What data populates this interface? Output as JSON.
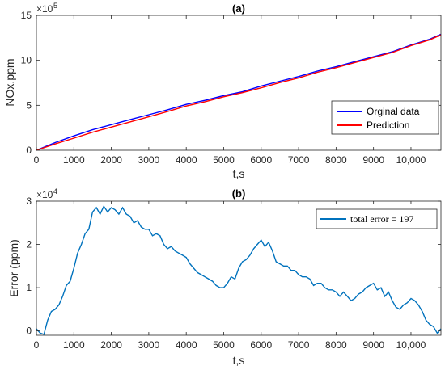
{
  "chart_data": [
    {
      "type": "line",
      "title": "(a)",
      "xlabel": "t,s",
      "ylabel": "NOx,ppm",
      "xlim": [
        0,
        10800
      ],
      "ylim": [
        0,
        1500000
      ],
      "x_ticks": [
        0,
        1000,
        2000,
        3000,
        4000,
        5000,
        6000,
        7000,
        8000,
        9000,
        10000
      ],
      "x_tick_labels": [
        "0",
        "1000",
        "2000",
        "3000",
        "4000",
        "5000",
        "6000",
        "7000",
        "8000",
        "9000",
        "10,000"
      ],
      "y_ticks": [
        0,
        500000,
        1000000,
        1500000
      ],
      "y_tick_labels": [
        "0",
        "5",
        "10",
        "15"
      ],
      "y_exponent_base": "×10",
      "y_exponent_power": "5",
      "legend_position": "bottom-right",
      "series": [
        {
          "name": "Orginal data",
          "color": "#0000ff",
          "x": [
            0,
            500,
            1000,
            1500,
            2000,
            2500,
            3000,
            3500,
            4000,
            4500,
            5000,
            5500,
            6000,
            6500,
            7000,
            7500,
            8000,
            8500,
            9000,
            9500,
            10000,
            10500,
            10800
          ],
          "y": [
            0,
            85000,
            160000,
            228000,
            285000,
            340000,
            395000,
            450000,
            510000,
            555000,
            608000,
            650000,
            715000,
            768000,
            820000,
            880000,
            930000,
            985000,
            1040000,
            1095000,
            1170000,
            1235000,
            1290000
          ]
        },
        {
          "name": "Prediction",
          "color": "#ff0000",
          "x": [
            0,
            500,
            1000,
            1500,
            2000,
            2500,
            3000,
            3500,
            4000,
            4500,
            5000,
            5500,
            6000,
            6500,
            7000,
            7500,
            8000,
            8500,
            9000,
            9500,
            10000,
            10500,
            10800
          ],
          "y": [
            0,
            70000,
            135000,
            200000,
            258000,
            315000,
            372000,
            430000,
            492000,
            540000,
            595000,
            640000,
            694000,
            753000,
            805000,
            867000,
            918000,
            975000,
            1031000,
            1087000,
            1163000,
            1228000,
            1283000
          ]
        }
      ]
    },
    {
      "type": "line",
      "title": "(b)",
      "xlabel": "t,s",
      "ylabel": "Error (ppm)",
      "xlim": [
        0,
        10800
      ],
      "ylim": [
        -1000,
        30000
      ],
      "x_ticks": [
        0,
        1000,
        2000,
        3000,
        4000,
        5000,
        6000,
        7000,
        8000,
        9000,
        10000
      ],
      "x_tick_labels": [
        "0",
        "1000",
        "2000",
        "3000",
        "4000",
        "5000",
        "6000",
        "7000",
        "8000",
        "9000",
        "10,000"
      ],
      "y_ticks": [
        0,
        10000,
        20000,
        30000
      ],
      "y_tick_labels": [
        "0",
        "1",
        "2",
        "3"
      ],
      "y_exponent_base": "×10",
      "y_exponent_power": "4",
      "legend_position": "top-right",
      "series": [
        {
          "name": "total error = 197",
          "color": "#0072bd",
          "x": [
            0,
            100,
            200,
            300,
            400,
            500,
            600,
            700,
            800,
            900,
            1000,
            1100,
            1200,
            1300,
            1400,
            1500,
            1600,
            1700,
            1800,
            1900,
            2000,
            2100,
            2200,
            2300,
            2400,
            2500,
            2600,
            2700,
            2800,
            2900,
            3000,
            3100,
            3200,
            3300,
            3400,
            3500,
            3600,
            3700,
            3800,
            3900,
            4000,
            4100,
            4200,
            4300,
            4400,
            4500,
            4600,
            4700,
            4800,
            4900,
            5000,
            5100,
            5200,
            5300,
            5400,
            5500,
            5600,
            5700,
            5800,
            5900,
            6000,
            6100,
            6200,
            6300,
            6400,
            6500,
            6600,
            6700,
            6800,
            6900,
            7000,
            7100,
            7200,
            7300,
            7400,
            7500,
            7600,
            7700,
            7800,
            7900,
            8000,
            8100,
            8200,
            8300,
            8400,
            8500,
            8600,
            8700,
            8800,
            8900,
            9000,
            9100,
            9200,
            9300,
            9400,
            9500,
            9600,
            9700,
            9800,
            9900,
            10000,
            10100,
            10200,
            10300,
            10400,
            10500,
            10600,
            10700,
            10800
          ],
          "y": [
            500,
            -500,
            -800,
            2500,
            4500,
            5000,
            6000,
            8000,
            10500,
            11500,
            14500,
            18000,
            20000,
            22500,
            23500,
            27500,
            28500,
            27000,
            28800,
            27500,
            28500,
            28000,
            27000,
            28500,
            27000,
            26500,
            25000,
            25500,
            24000,
            23500,
            23500,
            22000,
            22500,
            22000,
            20000,
            19000,
            19500,
            18500,
            18000,
            17500,
            17000,
            15500,
            14500,
            13500,
            13000,
            12500,
            12000,
            11500,
            10500,
            10000,
            10000,
            11000,
            12500,
            12000,
            14500,
            16000,
            16500,
            17500,
            19000,
            20000,
            21000,
            19500,
            20500,
            18500,
            16000,
            15500,
            15000,
            15000,
            14000,
            14000,
            13000,
            12500,
            12500,
            12000,
            10500,
            11000,
            11000,
            10000,
            9500,
            9500,
            9000,
            8000,
            9000,
            8000,
            7000,
            7500,
            8500,
            9000,
            10000,
            10500,
            11000,
            9500,
            10000,
            8000,
            9000,
            7000,
            5500,
            5000,
            6000,
            6500,
            7500,
            7000,
            6000,
            4500,
            2500,
            1500,
            1000,
            -500,
            500
          ]
        }
      ]
    }
  ]
}
